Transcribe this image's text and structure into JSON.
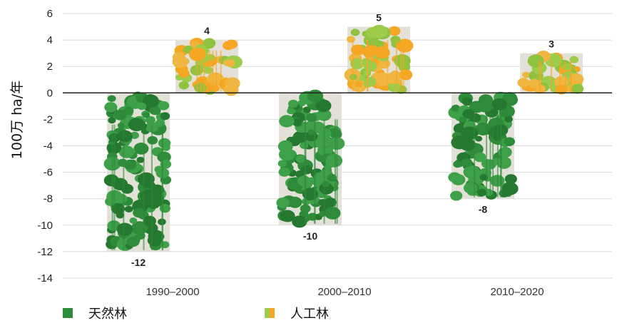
{
  "chart_data": {
    "type": "bar",
    "title": "",
    "xlabel": "",
    "ylabel": "100万 ha/年",
    "ylim": [
      -14,
      6
    ],
    "yticks": [
      6,
      4,
      2,
      0,
      -2,
      -4,
      -6,
      -8,
      -10,
      -12,
      -14
    ],
    "categories": [
      "1990–2000",
      "2000–2010",
      "2010–2020"
    ],
    "series": [
      {
        "name": "天然林",
        "values": [
          -12,
          -10,
          -8
        ],
        "labels": [
          "-12",
          "-10",
          "-8"
        ]
      },
      {
        "name": "人工林",
        "values": [
          4,
          5,
          3
        ],
        "labels": [
          "4",
          "5",
          "3"
        ]
      }
    ],
    "grid": true,
    "legend_position": "bottom-left"
  },
  "colors": {
    "natural_dark": "#2e8b3a",
    "natural_light": "#3fa04a",
    "planted_green": "#9ccc4a",
    "planted_orange": "#f5a623",
    "bar_background": "#e3e0d8",
    "grid": "#d9d9d9",
    "axis": "#222222"
  },
  "legend": {
    "natural_label": "天然林",
    "planted_label": "人工林"
  }
}
